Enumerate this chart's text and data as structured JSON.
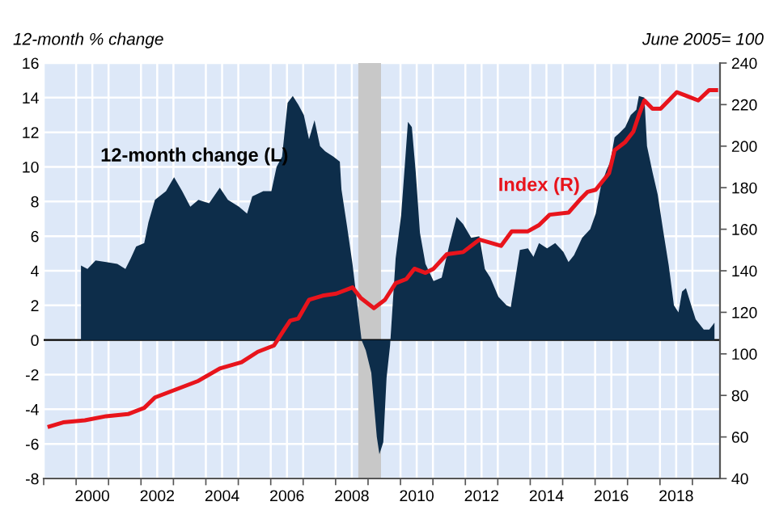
{
  "chart_data": {
    "type": "area",
    "ylabel": "12-month % change",
    "y2label": "June 2005= 100",
    "xlim": [
      1999.0,
      2019.85
    ],
    "ylim": [
      -8,
      16
    ],
    "yticks": [
      -8,
      -6,
      -4,
      -2,
      0,
      2,
      4,
      6,
      8,
      10,
      12,
      14,
      16
    ],
    "y2lim": [
      40,
      240
    ],
    "y2ticks": [
      40,
      60,
      80,
      100,
      120,
      140,
      160,
      180,
      200,
      220,
      240
    ],
    "xticks": [
      {
        "value": 1999,
        "label": null
      },
      {
        "value": 2000,
        "label": null
      },
      {
        "value": 2000.5,
        "label": "2000"
      },
      {
        "value": 2001,
        "label": null
      },
      {
        "value": 2002,
        "label": null
      },
      {
        "value": 2002.5,
        "label": "2002"
      },
      {
        "value": 2003,
        "label": null
      },
      {
        "value": 2004,
        "label": null
      },
      {
        "value": 2004.5,
        "label": "2004"
      },
      {
        "value": 2005,
        "label": null
      },
      {
        "value": 2006,
        "label": null
      },
      {
        "value": 2006.5,
        "label": "2006"
      },
      {
        "value": 2007,
        "label": null
      },
      {
        "value": 2008,
        "label": null
      },
      {
        "value": 2008.5,
        "label": "2008"
      },
      {
        "value": 2009,
        "label": null
      },
      {
        "value": 2010,
        "label": null
      },
      {
        "value": 2010.5,
        "label": "2010"
      },
      {
        "value": 2011,
        "label": null
      },
      {
        "value": 2012,
        "label": null
      },
      {
        "value": 2012.5,
        "label": "2012"
      },
      {
        "value": 2013,
        "label": null
      },
      {
        "value": 2014,
        "label": null
      },
      {
        "value": 2014.5,
        "label": "2014"
      },
      {
        "value": 2015,
        "label": null
      },
      {
        "value": 2016,
        "label": null
      },
      {
        "value": 2016.5,
        "label": "2016"
      },
      {
        "value": 2017,
        "label": null
      },
      {
        "value": 2018,
        "label": null
      },
      {
        "value": 2018.5,
        "label": "2018"
      },
      {
        "value": 2019,
        "label": null
      }
    ],
    "grid": true,
    "bands": [
      {
        "axis": "x",
        "from": 2008.7,
        "to": 2009.4,
        "label": null,
        "color": "#c8c8c8"
      }
    ],
    "series": [
      {
        "name": "12-month change (L)",
        "color": "#0d2d4a",
        "x": [
          2000.15,
          2000.35,
          2000.6,
          2000.93,
          2001.27,
          2001.52,
          2001.68,
          2001.85,
          2002.1,
          2002.23,
          2002.43,
          2002.77,
          2003.02,
          2003.27,
          2003.52,
          2003.77,
          2004.1,
          2004.43,
          2004.68,
          2005.02,
          2005.27,
          2005.43,
          2005.77,
          2006.02,
          2006.18,
          2006.35,
          2006.52,
          2006.68,
          2006.85,
          2007.02,
          2007.18,
          2007.35,
          2007.52,
          2007.68,
          2007.93,
          2008.13,
          2008.18,
          2008.35,
          2008.52,
          2008.68,
          2008.8,
          2008.93,
          2009.1,
          2009.27,
          2009.35,
          2009.47,
          2009.57,
          2009.68,
          2009.85,
          2010.02,
          2010.13,
          2010.23,
          2010.35,
          2010.47,
          2010.6,
          2010.77,
          2011.02,
          2011.27,
          2011.52,
          2011.73,
          2011.93,
          2012.18,
          2012.43,
          2012.6,
          2012.77,
          2013.02,
          2013.27,
          2013.4,
          2013.52,
          2013.68,
          2013.93,
          2014.1,
          2014.27,
          2014.52,
          2014.77,
          2015.02,
          2015.18,
          2015.35,
          2015.6,
          2015.85,
          2016.02,
          2016.18,
          2016.35,
          2016.47,
          2016.6,
          2016.77,
          2016.93,
          2017.1,
          2017.27,
          2017.35,
          2017.52,
          2017.6,
          2017.77,
          2017.93,
          2018.1,
          2018.27,
          2018.43,
          2018.57,
          2018.68,
          2018.8,
          2018.93,
          2019.1,
          2019.35,
          2019.52,
          2019.68
        ],
        "values": [
          4.3,
          4.1,
          4.6,
          4.5,
          4.4,
          4.1,
          4.7,
          5.4,
          5.6,
          6.8,
          8.1,
          8.6,
          9.4,
          8.6,
          7.7,
          8.1,
          7.9,
          8.8,
          8.1,
          7.7,
          7.3,
          8.3,
          8.6,
          8.6,
          10.0,
          10.6,
          13.7,
          14.1,
          13.6,
          13.0,
          11.6,
          12.7,
          11.2,
          10.9,
          10.6,
          10.3,
          8.7,
          6.6,
          4.4,
          1.9,
          0.0,
          -0.6,
          -1.9,
          -5.6,
          -6.6,
          -5.9,
          -2.2,
          -0.3,
          4.7,
          7.2,
          10.0,
          12.6,
          12.3,
          9.7,
          6.2,
          4.4,
          3.4,
          3.6,
          5.6,
          7.1,
          6.7,
          5.9,
          6.0,
          4.1,
          3.6,
          2.5,
          2.0,
          1.9,
          3.3,
          5.2,
          5.3,
          4.8,
          5.6,
          5.3,
          5.6,
          5.1,
          4.5,
          4.9,
          5.9,
          6.4,
          7.3,
          8.9,
          9.8,
          10.3,
          11.7,
          12.0,
          12.3,
          13.0,
          13.3,
          14.1,
          14.0,
          11.2,
          9.7,
          8.4,
          6.3,
          4.3,
          2.0,
          1.6,
          2.8,
          3.0,
          2.2,
          1.2,
          0.6,
          0.6,
          1.0
        ]
      },
      {
        "name": "Index (R)",
        "type": "line",
        "axis": "y2",
        "color": "#e8141c",
        "x": [
          1999.18,
          1999.6,
          2000.27,
          2000.93,
          2001.6,
          2002.1,
          2002.43,
          2003.1,
          2003.77,
          2004.43,
          2005.1,
          2005.6,
          2006.1,
          2006.43,
          2006.6,
          2006.85,
          2007.18,
          2007.6,
          2008.02,
          2008.52,
          2008.77,
          2009.18,
          2009.52,
          2009.85,
          2010.18,
          2010.43,
          2010.77,
          2011.02,
          2011.43,
          2011.93,
          2012.43,
          2013.1,
          2013.43,
          2013.93,
          2014.27,
          2014.6,
          2015.18,
          2015.52,
          2015.77,
          2016.02,
          2016.43,
          2016.6,
          2016.93,
          2017.18,
          2017.35,
          2017.52,
          2017.77,
          2018.02,
          2018.27,
          2018.52,
          2018.85,
          2019.18,
          2019.52,
          2019.73
        ],
        "values": [
          65,
          67,
          68,
          70,
          71,
          74,
          79,
          83,
          87,
          93,
          96,
          101,
          104,
          112,
          116,
          117,
          126,
          128,
          129,
          132,
          127,
          122,
          126,
          134,
          136,
          141,
          139,
          141,
          148,
          149,
          155,
          152,
          159,
          159,
          162,
          167,
          168,
          174,
          178,
          179,
          187,
          198,
          202,
          207,
          215,
          222,
          218,
          218,
          222,
          226,
          224,
          222,
          227,
          227
        ]
      }
    ]
  }
}
